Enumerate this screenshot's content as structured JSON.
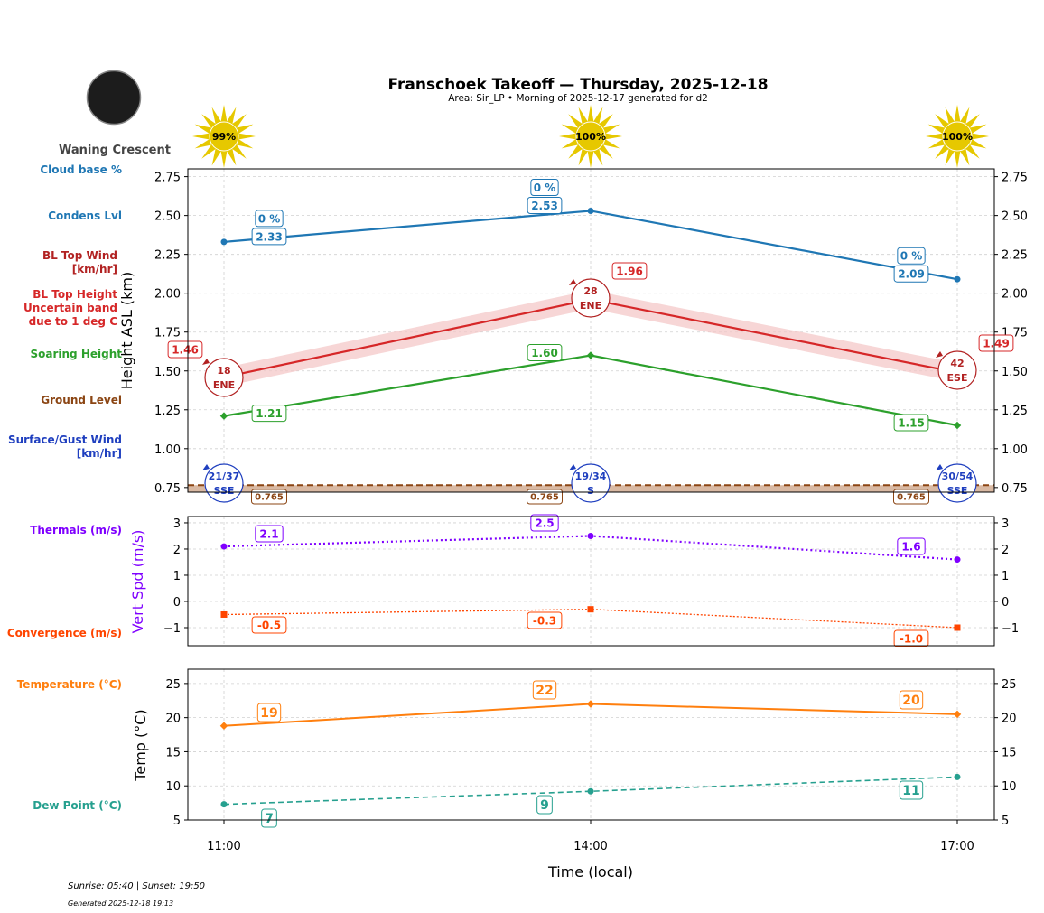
{
  "header": {
    "title": "Franschoek Takeoff — Thursday, 2025-12-18",
    "subtitle": "Area: Sir_LP • Morning of 2025-12-17 generated for d2",
    "moon_phase": "Waning Crescent",
    "sun_percent": [
      "99%",
      "100%",
      "100%"
    ]
  },
  "left_labels": {
    "cloud_base": "Cloud base %",
    "condens": "Condens Lvl",
    "bl_wind": [
      "BL Top Wind",
      "[km/hr]"
    ],
    "bl_height": [
      "BL Top Height",
      "Uncertain band",
      "due to 1 deg C"
    ],
    "soaring": "Soaring Height",
    "ground": "Ground Level",
    "surface_wind": [
      "Surface/Gust Wind",
      "[km/hr]"
    ],
    "thermals": "Thermals (m/s)",
    "convergence": "Convergence (m/s)",
    "temperature": "Temperature (°C)",
    "dew_point": "Dew Point (°C)"
  },
  "footer": {
    "sun_times": "Sunrise: 05:40 | Sunset: 19:50",
    "generated": "Generated 2025-12-18 19:13"
  },
  "colors": {
    "condens": "#1f77b4",
    "bl_height": "#d62728",
    "bl_wind": "#b22222",
    "soaring": "#2ca02c",
    "ground": "#8b4513",
    "surface_wind": "#1f3fbf",
    "thermals": "#7f00ff",
    "convergence": "#ff4500",
    "temperature": "#ff7f0e",
    "dew_point": "#26a08f"
  },
  "chart_data": [
    {
      "type": "line",
      "ylabel": "Height ASL (km)",
      "ylim": [
        0.72,
        2.8
      ],
      "yticks": [
        0.75,
        1.0,
        1.25,
        1.5,
        1.75,
        2.0,
        2.25,
        2.5,
        2.75
      ],
      "categories": [
        "11:00",
        "14:00",
        "17:00"
      ],
      "grid": true,
      "cloud_base_percent": [
        "0 %",
        "0 %",
        "0 %"
      ],
      "series": [
        {
          "key": "condens",
          "values": [
            2.33,
            2.53,
            2.09
          ]
        },
        {
          "key": "bl_height",
          "values": [
            1.46,
            1.96,
            1.49
          ],
          "band": 0.06
        },
        {
          "key": "soaring",
          "values": [
            1.21,
            1.6,
            1.15
          ]
        },
        {
          "key": "ground",
          "values": [
            0.765,
            0.765,
            0.765
          ]
        }
      ],
      "bl_top_wind": [
        {
          "speed": "18",
          "dir": "ENE"
        },
        {
          "speed": "28",
          "dir": "ENE"
        },
        {
          "speed": "42",
          "dir": "ESE"
        }
      ],
      "surface_wind": [
        {
          "speed": "21/37",
          "dir": "SSE"
        },
        {
          "speed": "19/34",
          "dir": "S"
        },
        {
          "speed": "30/54",
          "dir": "SSE"
        }
      ]
    },
    {
      "type": "line",
      "ylabel": "Vert Spd (m/s)",
      "ylim": [
        -1.69,
        3.24
      ],
      "yticks": [
        -1,
        0,
        1,
        2,
        3
      ],
      "categories": [
        "11:00",
        "14:00",
        "17:00"
      ],
      "grid": true,
      "series": [
        {
          "key": "thermals",
          "values": [
            2.1,
            2.5,
            1.6
          ]
        },
        {
          "key": "convergence",
          "values": [
            -0.5,
            -0.3,
            -1.0
          ]
        }
      ]
    },
    {
      "type": "line",
      "ylabel": "Temp (°C)",
      "xlabel": "Time (local)",
      "ylim": [
        5,
        27.1
      ],
      "yticks": [
        5,
        10,
        15,
        20,
        25
      ],
      "categories": [
        "11:00",
        "14:00",
        "17:00"
      ],
      "grid": true,
      "series": [
        {
          "key": "temperature",
          "values": [
            18.8,
            22.0,
            20.5
          ],
          "labels": [
            "19",
            "22",
            "20"
          ]
        },
        {
          "key": "dew_point",
          "values": [
            7.3,
            9.2,
            11.3
          ],
          "labels": [
            "7",
            "9",
            "11"
          ]
        }
      ]
    }
  ]
}
